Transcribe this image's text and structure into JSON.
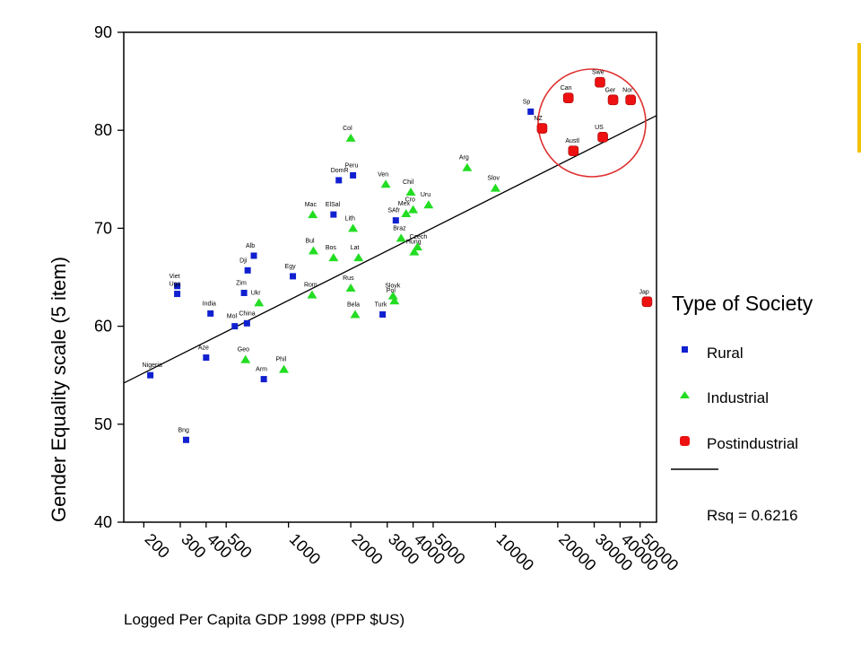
{
  "colors": {
    "rural": "#1020d0",
    "industrial": "#22dd22",
    "postindustrial": "#ee1111",
    "circle": "#e03030",
    "accent_bar": "#f2c200"
  },
  "chart_data": {
    "type": "scatter",
    "x_scale": "log",
    "xlabel": "Logged Per Capita GDP 1998 (PPP $US)",
    "ylabel": "Gender Equality scale (5 item)",
    "xlim": [
      160,
      60000
    ],
    "ylim": [
      40,
      90
    ],
    "x_ticks": [
      200,
      300,
      400,
      500,
      1000,
      2000,
      3000,
      4000,
      5000,
      10000,
      20000,
      30000,
      40000,
      50000
    ],
    "x_tick_labels": [
      "200",
      "300",
      "400",
      "500",
      "1000",
      "2000",
      "3000",
      "4000",
      "5000",
      "10000",
      "20000",
      "30000",
      "40000",
      "50000"
    ],
    "y_ticks": [
      40,
      50,
      60,
      70,
      80,
      90
    ],
    "y_tick_labels": [
      "40",
      "50",
      "60",
      "70",
      "80",
      "90"
    ],
    "grid": false,
    "legend": {
      "title": "Type of Society",
      "placement": "right",
      "entries": [
        "Rural",
        "Industrial",
        "Postindustrial"
      ],
      "fit_label": "Rsq = 0.6216"
    },
    "fit_line": {
      "x": [
        160,
        60000
      ],
      "y": [
        54.2,
        81.5
      ]
    },
    "series": [
      {
        "name": "Rural",
        "marker": "square",
        "points": [
          {
            "label": "Nigeria",
            "x": 215,
            "y": 55.0
          },
          {
            "label": "Viet",
            "x": 290,
            "y": 64.1
          },
          {
            "label": "Uga",
            "x": 290,
            "y": 63.3
          },
          {
            "label": "Bng",
            "x": 320,
            "y": 48.4
          },
          {
            "label": "India",
            "x": 420,
            "y": 61.3
          },
          {
            "label": "Aze",
            "x": 400,
            "y": 56.8
          },
          {
            "label": "Mol",
            "x": 550,
            "y": 60.0
          },
          {
            "label": "Zim",
            "x": 610,
            "y": 63.4
          },
          {
            "label": "China",
            "x": 630,
            "y": 60.3
          },
          {
            "label": "Dji",
            "x": 635,
            "y": 65.7
          },
          {
            "label": "Alb",
            "x": 680,
            "y": 67.2
          },
          {
            "label": "Arm",
            "x": 760,
            "y": 54.6
          },
          {
            "label": "Egy",
            "x": 1050,
            "y": 65.1
          },
          {
            "label": "ElSal",
            "x": 1650,
            "y": 71.4
          },
          {
            "label": "DomR",
            "x": 1750,
            "y": 74.9
          },
          {
            "label": "Peru",
            "x": 2050,
            "y": 75.4
          },
          {
            "label": "Turk",
            "x": 2850,
            "y": 61.2
          },
          {
            "label": "SAfr",
            "x": 3300,
            "y": 70.8
          },
          {
            "label": "Sp",
            "x": 14800,
            "y": 81.9
          }
        ]
      },
      {
        "name": "Industrial",
        "marker": "triangle",
        "points": [
          {
            "label": "Geo",
            "x": 620,
            "y": 56.6
          },
          {
            "label": "Ukr",
            "x": 720,
            "y": 62.4
          },
          {
            "label": "Phil",
            "x": 950,
            "y": 55.6
          },
          {
            "label": "Rom",
            "x": 1300,
            "y": 63.2
          },
          {
            "label": "Bul",
            "x": 1320,
            "y": 67.7
          },
          {
            "label": "Mac",
            "x": 1310,
            "y": 71.4
          },
          {
            "label": "Col",
            "x": 2000,
            "y": 79.2
          },
          {
            "label": "Bos",
            "x": 1650,
            "y": 67.0
          },
          {
            "label": "Lith",
            "x": 2050,
            "y": 70.0
          },
          {
            "label": "Rus",
            "x": 2000,
            "y": 63.9
          },
          {
            "label": "Bela",
            "x": 2100,
            "y": 61.2
          },
          {
            "label": "Lat",
            "x": 2180,
            "y": 67.0
          },
          {
            "label": "Ven",
            "x": 2950,
            "y": 74.5
          },
          {
            "label": "Slovk",
            "x": 3200,
            "y": 63.1
          },
          {
            "label": "Pol",
            "x": 3250,
            "y": 62.6
          },
          {
            "label": "Braz",
            "x": 3500,
            "y": 69.0
          },
          {
            "label": "Mex",
            "x": 3700,
            "y": 71.5
          },
          {
            "label": "Chil",
            "x": 3900,
            "y": 73.7
          },
          {
            "label": "Cro",
            "x": 4000,
            "y": 71.9
          },
          {
            "label": "Hung",
            "x": 4050,
            "y": 67.6
          },
          {
            "label": "Czech",
            "x": 4200,
            "y": 68.1
          },
          {
            "label": "Uru",
            "x": 4750,
            "y": 72.4
          },
          {
            "label": "Arg",
            "x": 7300,
            "y": 76.2
          },
          {
            "label": "Slov",
            "x": 10000,
            "y": 74.1
          }
        ]
      },
      {
        "name": "Postindustrial",
        "marker": "circle",
        "points": [
          {
            "label": "NZ",
            "x": 16800,
            "y": 80.2
          },
          {
            "label": "Can",
            "x": 22500,
            "y": 83.3
          },
          {
            "label": "Austl",
            "x": 23800,
            "y": 77.9
          },
          {
            "label": "Swe",
            "x": 32000,
            "y": 84.9
          },
          {
            "label": "US",
            "x": 33000,
            "y": 79.3
          },
          {
            "label": "Ger",
            "x": 37000,
            "y": 83.1
          },
          {
            "label": "Nor",
            "x": 45000,
            "y": 83.1
          },
          {
            "label": "Jap",
            "x": 54000,
            "y": 62.5
          }
        ]
      }
    ]
  }
}
